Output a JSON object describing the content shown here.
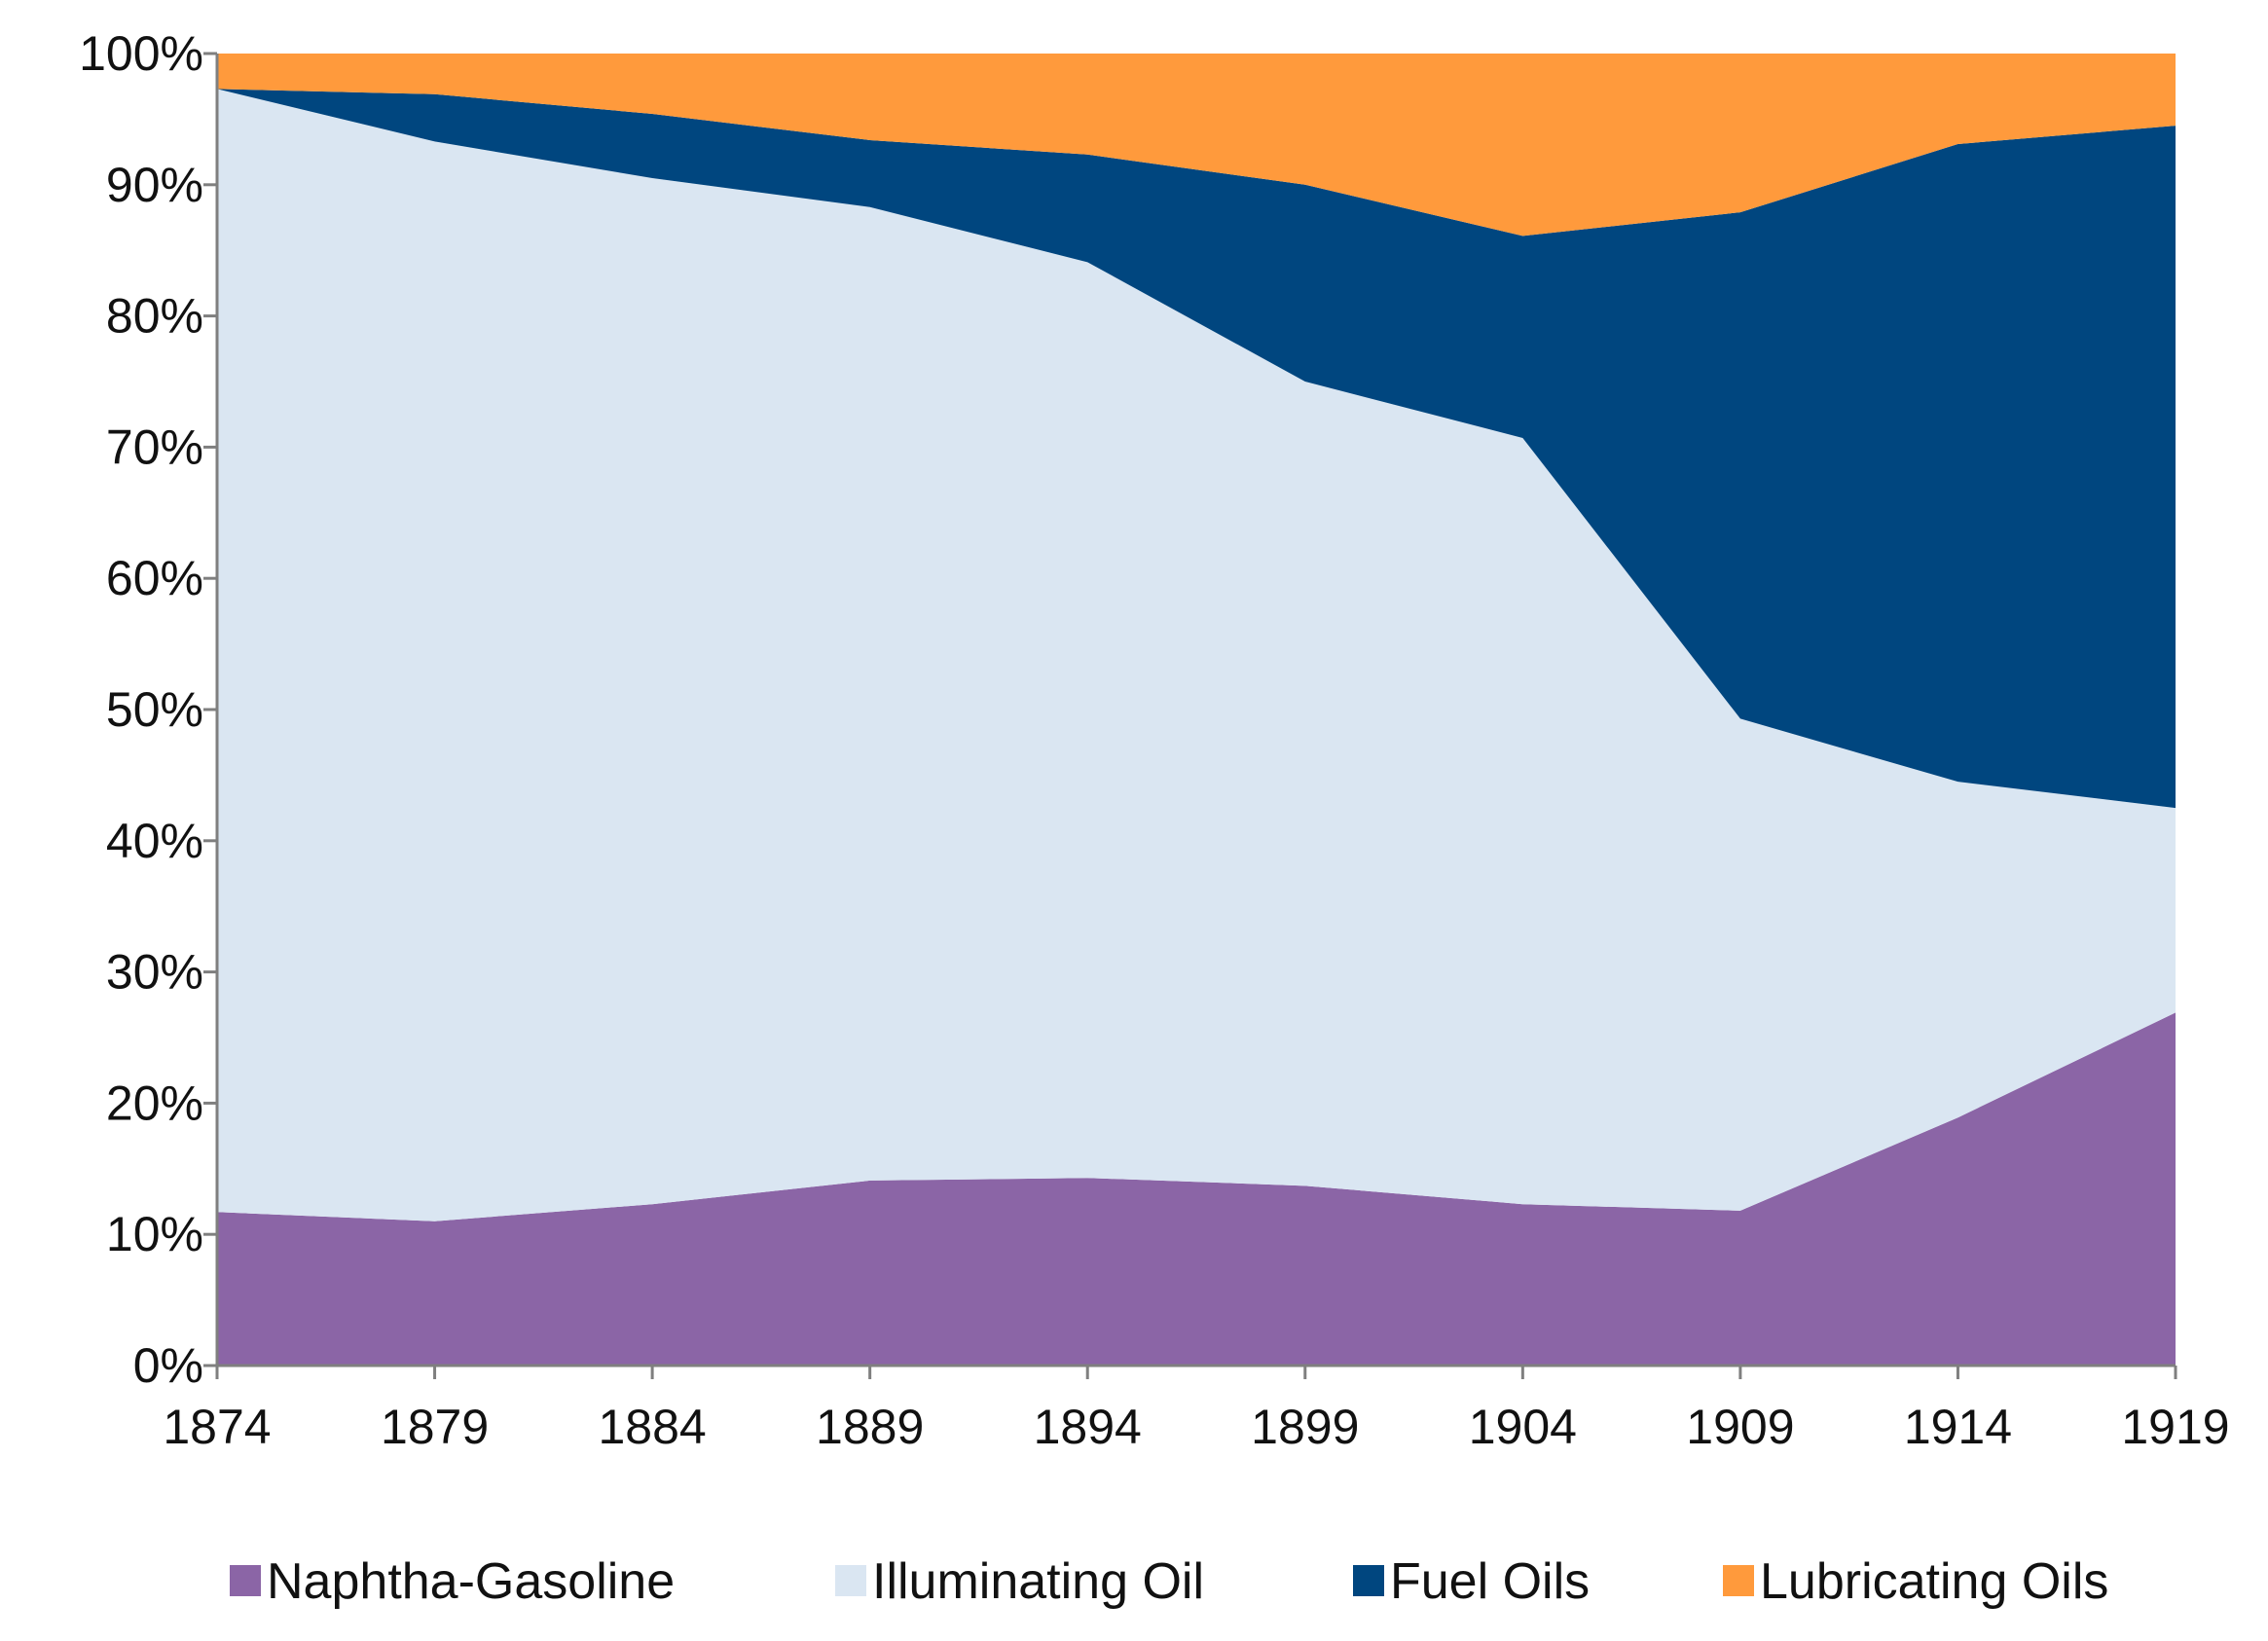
{
  "chart_data": {
    "type": "area",
    "stacked": true,
    "percent": true,
    "title": "",
    "xlabel": "",
    "ylabel": "",
    "ylim": [
      0,
      100
    ],
    "y_ticks": [
      "0%",
      "10%",
      "20%",
      "30%",
      "40%",
      "50%",
      "60%",
      "70%",
      "80%",
      "90%",
      "100%"
    ],
    "categories": [
      "1874",
      "1879",
      "1884",
      "1889",
      "1894",
      "1899",
      "1904",
      "1909",
      "1914",
      "1919"
    ],
    "series": [
      {
        "name": "Naphtha-Gasoline",
        "color": "#8B65A6",
        "values": [
          11.7,
          11.0,
          12.3,
          14.1,
          14.3,
          13.7,
          12.3,
          11.8,
          18.9,
          26.9
        ]
      },
      {
        "name": "Illuminating Oil",
        "color": "#DAE6F2",
        "values": [
          85.6,
          82.3,
          78.2,
          74.2,
          69.8,
          61.3,
          58.4,
          37.5,
          25.6,
          15.6
        ]
      },
      {
        "name": "Fuel Oils",
        "color": "#00467F",
        "values": [
          0.0,
          3.6,
          4.9,
          5.1,
          8.2,
          15.0,
          15.4,
          38.6,
          48.6,
          52.0
        ]
      },
      {
        "name": "Lubricating Oils",
        "color": "#FF9A3C",
        "values": [
          2.7,
          3.1,
          4.6,
          6.6,
          7.7,
          10.0,
          13.9,
          12.1,
          6.9,
          5.5
        ]
      }
    ],
    "legend_position": "bottom",
    "grid": false
  }
}
